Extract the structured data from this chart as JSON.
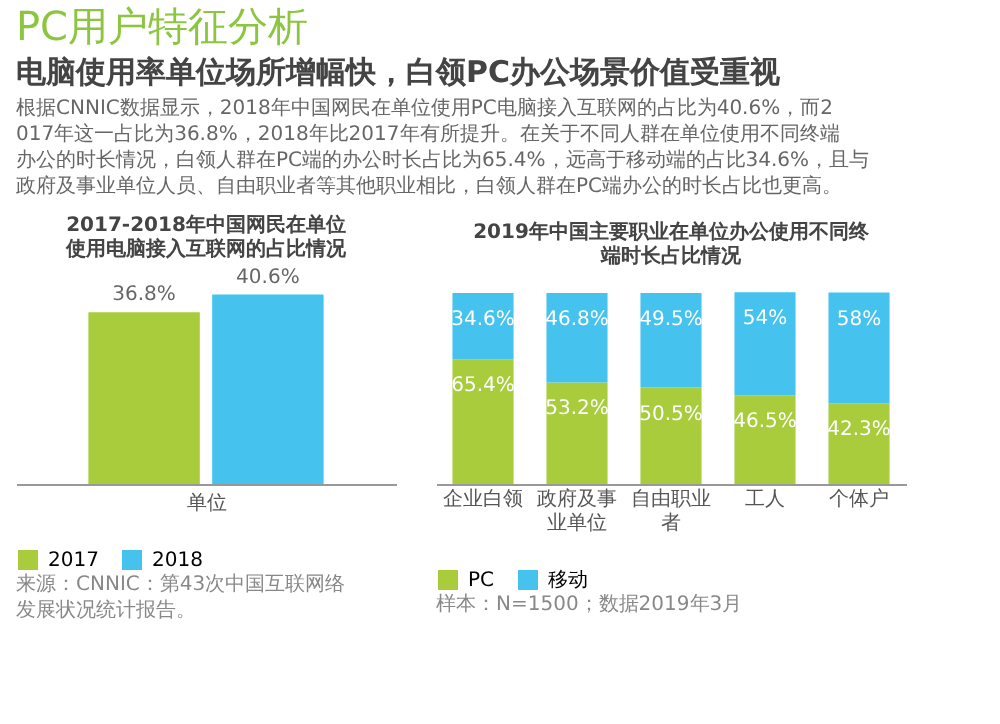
{
  "chart_data": [
    {
      "type": "other",
      "title": "PC用户特征分析",
      "subtitle": "电脑使用率单位场所增幅快，白领PC办公场景价值受重视",
      "annotations": [
        "根据CNNIC数据显示，2018年中国网民在单位使用PC电脑接入互联网的占比为40.6%，而2017年这一占比为36.8%，2018年比2017年有所提升。在关于不同人群在单位使用不同终端办公的时长情况，白领人群在PC端的办公时长占比为65.4%，远高于移动端的占比34.6%，且与政府及事业单位人员、自由职业者等其他职业相比，白领人群在PC端办公的时长占比也更高。"
      ]
    },
    {
      "type": "bar",
      "title": "2017-2018年中国网民在单位使用电脑接入互联网的占比情况",
      "xlabel": "单位",
      "categories": [
        null
      ],
      "series": [
        {
          "name": "2017",
          "color": "#a8cc3c",
          "values": [
            36.8
          ],
          "value_labels": [
            "36.8%"
          ]
        },
        {
          "name": "2018",
          "color": "#45c3ee",
          "values": [
            40.6
          ],
          "value_labels": [
            "40.6%"
          ]
        }
      ],
      "legend": "bottom",
      "annotations": [
        "来源：CNNIC：第43次中国互联网络发展状况统计报告。"
      ]
    },
    {
      "type": "bar",
      "stacked": true,
      "title": "2019年中国主要职业在单位办公使用不同终端时长占比情况",
      "categories": [
        "企业白领",
        "政府及事业单位",
        "自由职业者",
        "工人",
        "个体户"
      ],
      "series": [
        {
          "name": "PC",
          "color": "#a8cc3c",
          "values": [
            65.4,
            53.2,
            50.5,
            46.5,
            42.3
          ],
          "value_labels": [
            "65.4%",
            "53.2%",
            "50.5%",
            "46.5%",
            "42.3%"
          ]
        },
        {
          "name": "移动",
          "color": "#45c3ee",
          "values": [
            34.6,
            46.8,
            49.5,
            54,
            58
          ],
          "value_labels": [
            "34.6%",
            "46.8%",
            "49.5%",
            "54%",
            "58%"
          ]
        }
      ],
      "legend": "bottom",
      "annotations": [
        "样本：N=1500；数据2019年3月"
      ]
    }
  ]
}
